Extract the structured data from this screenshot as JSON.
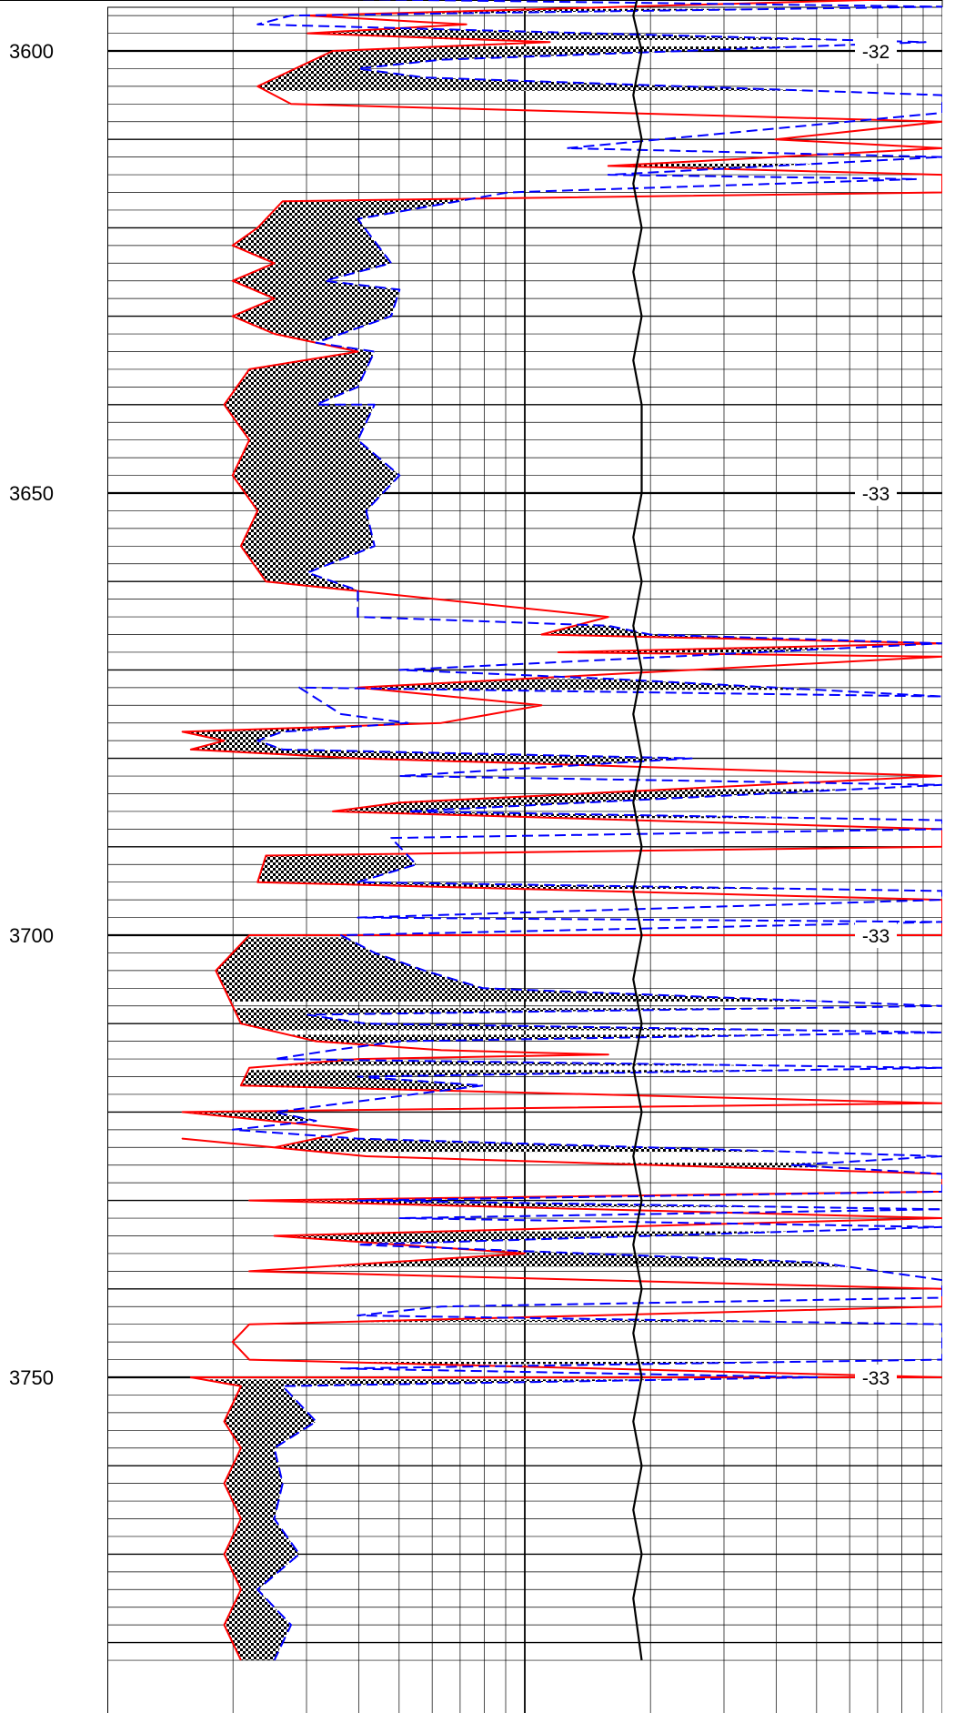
{
  "chart_data": {
    "type": "line",
    "title": "",
    "ylabel": "",
    "xlabel": "",
    "depth_axis": {
      "ylim": [
        3588,
        3782
      ],
      "inverted": true,
      "major_step": 50,
      "minor_step": 2,
      "mid_step": 10
    },
    "depth_labels": [
      "3600",
      "3650",
      "3700",
      "3750"
    ],
    "track_labels": [
      {
        "depth": 3600,
        "text": "-32"
      },
      {
        "depth": 3650,
        "text": "-33"
      },
      {
        "depth": 3700,
        "text": "-33"
      },
      {
        "depth": 3750,
        "text": "-33"
      }
    ],
    "xlim": [
      0,
      100
    ],
    "grid": true,
    "colors": {
      "series_a": "#ff0000",
      "series_b": "#0000ff",
      "series_c": "#000000",
      "fill": "checker-gray"
    },
    "series": [
      {
        "style": "solid-red",
        "points": [
          [
            30,
            3588
          ],
          [
            52,
            3589
          ],
          [
            100,
            3590
          ],
          [
            45,
            3591
          ],
          [
            100,
            3592
          ],
          [
            100,
            3594
          ],
          [
            24,
            3596
          ],
          [
            43,
            3597
          ],
          [
            24,
            3598
          ],
          [
            53,
            3599
          ],
          [
            27,
            3600
          ],
          [
            18,
            3604
          ],
          [
            22,
            3606
          ],
          [
            100,
            3608
          ],
          [
            80,
            3610
          ],
          [
            100,
            3611
          ],
          [
            60,
            3613
          ],
          [
            100,
            3614
          ],
          [
            100,
            3616
          ],
          [
            21,
            3617
          ],
          [
            18,
            3620
          ],
          [
            15,
            3622
          ],
          [
            20,
            3624
          ],
          [
            15,
            3626
          ],
          [
            20,
            3628
          ],
          [
            15,
            3630
          ],
          [
            20,
            3632
          ],
          [
            30,
            3634
          ],
          [
            17,
            3636
          ],
          [
            14,
            3640
          ],
          [
            17,
            3644
          ],
          [
            15,
            3648
          ],
          [
            18,
            3652
          ],
          [
            16,
            3656
          ],
          [
            19,
            3660
          ],
          [
            60,
            3664
          ],
          [
            52,
            3666
          ],
          [
            100,
            3667
          ],
          [
            54,
            3668
          ],
          [
            100,
            3668.5
          ],
          [
            70,
            3670
          ],
          [
            30,
            3672
          ],
          [
            52,
            3674
          ],
          [
            40,
            3676
          ],
          [
            9,
            3677
          ],
          [
            14,
            3678
          ],
          [
            10,
            3679
          ],
          [
            30,
            3680
          ],
          [
            100,
            3682
          ],
          [
            35,
            3685
          ],
          [
            27,
            3686
          ],
          [
            100,
            3688
          ],
          [
            100,
            3690
          ],
          [
            19,
            3691
          ],
          [
            18,
            3694
          ],
          [
            100,
            3696
          ],
          [
            100,
            3700
          ],
          [
            17,
            3700
          ],
          [
            13,
            3704
          ],
          [
            15,
            3708
          ],
          [
            16,
            3710
          ],
          [
            25,
            3712
          ],
          [
            40,
            3713
          ],
          [
            60,
            3713.5
          ],
          [
            30,
            3714
          ],
          [
            17,
            3715
          ],
          [
            16,
            3717
          ],
          [
            100,
            3719
          ],
          [
            9,
            3720
          ],
          [
            30,
            3722
          ],
          [
            20,
            3724
          ],
          [
            9,
            3723
          ],
          [
            31,
            3725
          ],
          [
            100,
            3727
          ],
          [
            100,
            3729
          ],
          [
            17,
            3730
          ],
          [
            100,
            3732
          ],
          [
            20,
            3734
          ],
          [
            50,
            3736
          ],
          [
            17,
            3738
          ],
          [
            100,
            3740
          ],
          [
            100,
            3742
          ],
          [
            17,
            3744
          ],
          [
            15,
            3746
          ],
          [
            17,
            3748
          ],
          [
            100,
            3750
          ],
          [
            10,
            3750
          ],
          [
            16,
            3751
          ],
          [
            14,
            3755
          ],
          [
            16,
            3758
          ],
          [
            14,
            3762
          ],
          [
            16,
            3766
          ],
          [
            14,
            3770
          ],
          [
            16,
            3774
          ],
          [
            14,
            3778
          ],
          [
            16,
            3782
          ]
        ]
      },
      {
        "style": "dashed-blue",
        "points": [
          [
            35,
            3589
          ],
          [
            100,
            3590
          ],
          [
            25,
            3591
          ],
          [
            100,
            3592
          ],
          [
            22,
            3593
          ],
          [
            18,
            3594
          ],
          [
            100,
            3595
          ],
          [
            22,
            3596
          ],
          [
            18,
            3597
          ],
          [
            98,
            3599
          ],
          [
            40,
            3601
          ],
          [
            30,
            3602
          ],
          [
            38,
            3603
          ],
          [
            100,
            3605
          ],
          [
            100,
            3607
          ],
          [
            55,
            3611
          ],
          [
            100,
            3612
          ],
          [
            60,
            3614
          ],
          [
            97,
            3614.5
          ],
          [
            48,
            3616
          ],
          [
            30,
            3619
          ],
          [
            34,
            3624
          ],
          [
            26,
            3626
          ],
          [
            35,
            3627
          ],
          [
            34,
            3630
          ],
          [
            25,
            3633
          ],
          [
            32,
            3634
          ],
          [
            30,
            3638
          ],
          [
            25,
            3640
          ],
          [
            32,
            3640
          ],
          [
            30,
            3644
          ],
          [
            35,
            3648
          ],
          [
            31,
            3652
          ],
          [
            32,
            3656
          ],
          [
            24,
            3659
          ],
          [
            30,
            3661
          ],
          [
            30,
            3664
          ],
          [
            60,
            3665
          ],
          [
            65,
            3666
          ],
          [
            100,
            3667
          ],
          [
            35,
            3670
          ],
          [
            60,
            3671
          ],
          [
            80,
            3672
          ],
          [
            100,
            3673
          ],
          [
            23,
            3672
          ],
          [
            28,
            3675
          ],
          [
            36,
            3676
          ],
          [
            21,
            3677
          ],
          [
            18,
            3678
          ],
          [
            21,
            3679
          ],
          [
            70,
            3680
          ],
          [
            35,
            3682
          ],
          [
            100,
            3683
          ],
          [
            36,
            3686
          ],
          [
            100,
            3687
          ],
          [
            100,
            3688
          ],
          [
            34,
            3689
          ],
          [
            37,
            3692
          ],
          [
            30,
            3694
          ],
          [
            100,
            3695
          ],
          [
            100,
            3696
          ],
          [
            30,
            3698
          ],
          [
            100,
            3698.5
          ],
          [
            28,
            3700
          ],
          [
            32,
            3702
          ],
          [
            38,
            3704
          ],
          [
            45,
            3706
          ],
          [
            100,
            3708
          ],
          [
            24,
            3709
          ],
          [
            31,
            3710
          ],
          [
            100,
            3711
          ],
          [
            35,
            3712
          ],
          [
            27,
            3713
          ],
          [
            20,
            3714
          ],
          [
            100,
            3715
          ],
          [
            30,
            3716
          ],
          [
            45,
            3717
          ],
          [
            20,
            3720
          ],
          [
            25,
            3721
          ],
          [
            15,
            3722
          ],
          [
            30,
            3723
          ],
          [
            100,
            3725
          ],
          [
            82,
            3726
          ],
          [
            100,
            3727
          ],
          [
            100,
            3729
          ],
          [
            30,
            3730
          ],
          [
            100,
            3731
          ],
          [
            35,
            3732
          ],
          [
            100,
            3733
          ],
          [
            30,
            3735
          ],
          [
            85,
            3737
          ],
          [
            100,
            3739
          ],
          [
            100,
            3741
          ],
          [
            40,
            3742
          ],
          [
            30,
            3743
          ],
          [
            100,
            3744
          ],
          [
            100,
            3746
          ],
          [
            100,
            3748
          ],
          [
            28,
            3749
          ],
          [
            85,
            3750
          ],
          [
            21,
            3751
          ],
          [
            25,
            3755
          ],
          [
            20,
            3758
          ],
          [
            21,
            3762
          ],
          [
            20,
            3766
          ],
          [
            23,
            3770
          ],
          [
            18,
            3774
          ],
          [
            22,
            3778
          ],
          [
            20,
            3782
          ]
        ]
      },
      {
        "style": "solid-black",
        "points": [
          [
            63,
            3588
          ],
          [
            64,
            3592
          ],
          [
            63,
            3596
          ],
          [
            64,
            3600
          ],
          [
            63,
            3605
          ],
          [
            64,
            3610
          ],
          [
            63,
            3615
          ],
          [
            64,
            3620
          ],
          [
            63,
            3625
          ],
          [
            64,
            3630
          ],
          [
            63,
            3635
          ],
          [
            64,
            3640
          ],
          [
            64,
            3650
          ],
          [
            63,
            3655
          ],
          [
            64,
            3660
          ],
          [
            63,
            3665
          ],
          [
            64,
            3670
          ],
          [
            63,
            3675
          ],
          [
            64,
            3680
          ],
          [
            63,
            3685
          ],
          [
            64,
            3690
          ],
          [
            63,
            3695
          ],
          [
            64,
            3700
          ],
          [
            63,
            3705
          ],
          [
            64,
            3710
          ],
          [
            63,
            3715
          ],
          [
            64,
            3720
          ],
          [
            63,
            3725
          ],
          [
            64,
            3730
          ],
          [
            63,
            3735
          ],
          [
            64,
            3740
          ],
          [
            63,
            3745
          ],
          [
            64,
            3750
          ],
          [
            63,
            3755
          ],
          [
            64,
            3760
          ],
          [
            63,
            3765
          ],
          [
            64,
            3770
          ],
          [
            63,
            3775
          ],
          [
            64,
            3782
          ]
        ]
      }
    ]
  }
}
